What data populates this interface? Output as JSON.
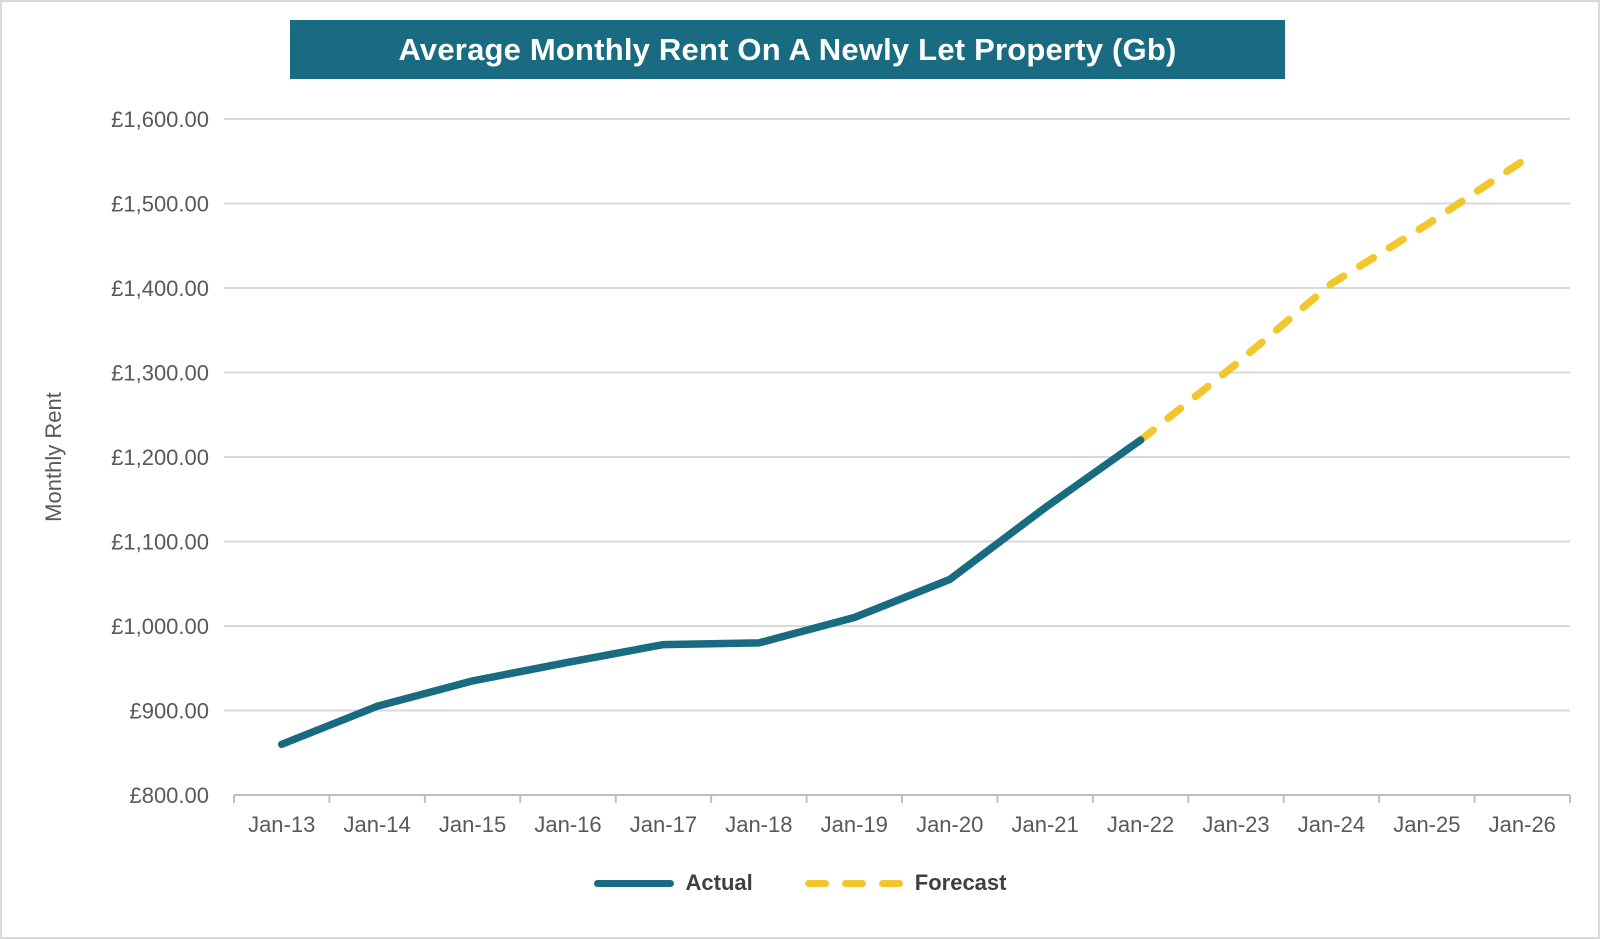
{
  "title": {
    "text": "Average Monthly Rent On A Newly Let Property (Gb)",
    "bg": "#186b80",
    "color": "#ffffff"
  },
  "chart_data": {
    "type": "line",
    "title": "Average Monthly Rent On A Newly Let Property (Gb)",
    "xlabel": "",
    "ylabel": "Monthly Rent",
    "categories": [
      "Jan-13",
      "Jan-14",
      "Jan-15",
      "Jan-16",
      "Jan-17",
      "Jan-18",
      "Jan-19",
      "Jan-20",
      "Jan-21",
      "Jan-22",
      "Jan-23",
      "Jan-24",
      "Jan-25",
      "Jan-26"
    ],
    "series": [
      {
        "name": "Actual",
        "line_style": "solid",
        "color": "#186b80",
        "values": [
          860,
          905,
          935,
          957,
          978,
          980,
          1010,
          1055,
          1140,
          1220,
          null,
          null,
          null,
          null
        ]
      },
      {
        "name": "Forecast",
        "line_style": "dashed",
        "color": "#f2c72e",
        "values": [
          null,
          null,
          null,
          null,
          null,
          null,
          null,
          null,
          null,
          1220,
          1310,
          1405,
          1475,
          1550
        ]
      }
    ],
    "ylim": [
      800,
      1600
    ],
    "y_tick_step": 100,
    "y_tick_labels": [
      "£800.00",
      "£900.00",
      "£1,000.00",
      "£1,100.00",
      "£1,200.00",
      "£1,300.00",
      "£1,400.00",
      "£1,500.00",
      "£1,600.00"
    ],
    "grid": "horizontal",
    "legend_position": "bottom"
  },
  "colors": {
    "gridline": "#d9d9d9",
    "axis_line": "#bfbfbf",
    "tick_label": "#595959",
    "legend_label": "#3f3f3f",
    "background": "#ffffff"
  }
}
